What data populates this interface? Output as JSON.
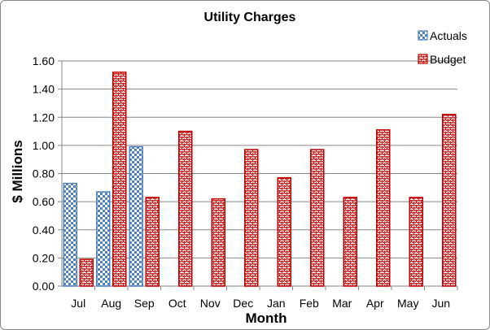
{
  "chart_data": {
    "type": "bar",
    "title": "Utility Charges",
    "xlabel": "Month",
    "ylabel": "$ Millions",
    "categories": [
      "Jul",
      "Aug",
      "Sep",
      "Oct",
      "Nov",
      "Dec",
      "Jan",
      "Feb",
      "Mar",
      "Apr",
      "May",
      "Jun"
    ],
    "series": [
      {
        "name": "Actuals",
        "color": "#4f81bd",
        "pattern": "checker",
        "values": [
          0.73,
          0.67,
          0.99,
          null,
          null,
          null,
          null,
          null,
          null,
          null,
          null,
          null
        ]
      },
      {
        "name": "Budget",
        "color": "#c00000",
        "pattern": "zigzag",
        "values": [
          0.19,
          1.52,
          0.63,
          1.1,
          0.62,
          0.97,
          0.77,
          0.97,
          0.63,
          1.11,
          0.63,
          1.22
        ]
      }
    ],
    "ylim": [
      0,
      1.6
    ],
    "yticks": [
      "0.00",
      "0.20",
      "0.40",
      "0.60",
      "0.80",
      "1.00",
      "1.20",
      "1.40",
      "1.60"
    ],
    "grid": true,
    "legend_position": "top-right"
  }
}
